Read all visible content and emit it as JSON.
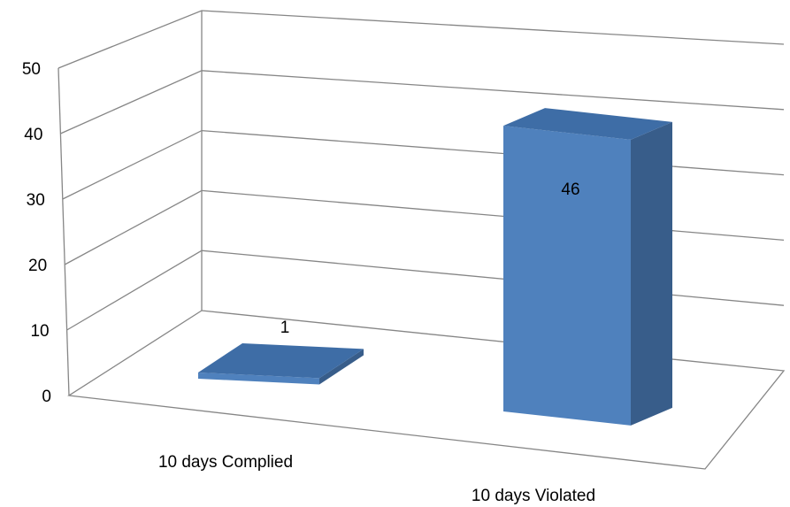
{
  "chart_data": {
    "type": "bar",
    "style": "3d-column",
    "categories": [
      "10 days Complied",
      "10 days Violated"
    ],
    "values": [
      1,
      46
    ],
    "data_labels": [
      "1",
      "46"
    ],
    "ylim": [
      0,
      50
    ],
    "yticks": [
      "0",
      "10",
      "20",
      "30",
      "40",
      "50"
    ],
    "grid": true,
    "legend": "none",
    "colors": {
      "bar_front": "#4f81bd",
      "bar_top": "#3e6da6",
      "bar_side": "#385d8a",
      "grid": "#868686"
    }
  }
}
